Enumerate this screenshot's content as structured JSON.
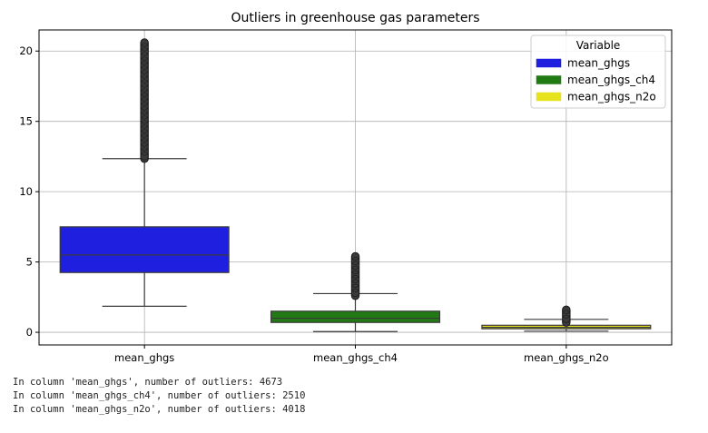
{
  "chart_data": {
    "type": "box",
    "title": "Outliers in greenhouse gas parameters",
    "xlabel": "",
    "ylabel": "",
    "ylim": [
      -0.9,
      21.5
    ],
    "yticks": [
      0,
      5,
      10,
      15,
      20
    ],
    "grid": true,
    "categories": [
      "mean_ghgs",
      "mean_ghgs_ch4",
      "mean_ghgs_n2o"
    ],
    "series": [
      {
        "name": "mean_ghgs",
        "color": "#1f1fe0",
        "box": {
          "whisker_low": 1.85,
          "q1": 4.25,
          "median": 5.5,
          "q3": 7.5,
          "whisker_high": 12.35,
          "outlier_min": 12.35,
          "outlier_max": 20.6
        }
      },
      {
        "name": "mean_ghgs_ch4",
        "color": "#217a14",
        "box": {
          "whisker_low": 0.05,
          "q1": 0.7,
          "median": 1.0,
          "q3": 1.5,
          "whisker_high": 2.75,
          "outlier_min": 2.6,
          "outlier_max": 5.4
        }
      },
      {
        "name": "mean_ghgs_n2o",
        "color": "#e6e21c",
        "box": {
          "whisker_low": 0.08,
          "q1": 0.25,
          "median": 0.35,
          "q3": 0.5,
          "whisker_high": 0.92,
          "outlier_min": 0.7,
          "outlier_max": 1.6
        }
      }
    ],
    "legend": {
      "title": "Variable",
      "placement": "top-right"
    }
  },
  "output_lines": [
    "In column 'mean_ghgs', number of outliers: 4673",
    "In column 'mean_ghgs_ch4', number of outliers: 2510",
    "In column 'mean_ghgs_n2o', number of outliers: 4018"
  ]
}
